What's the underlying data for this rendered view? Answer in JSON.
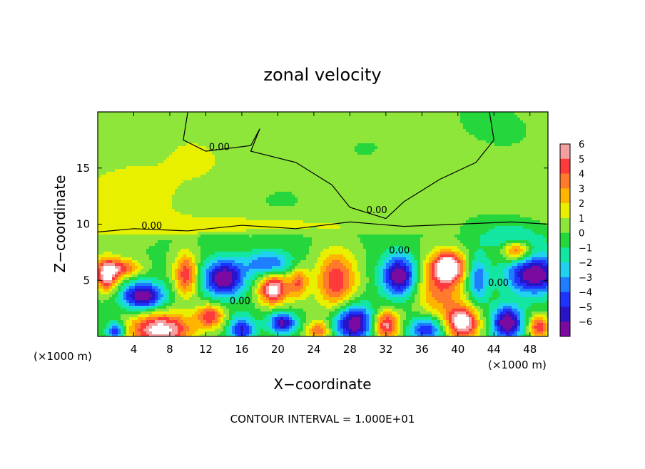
{
  "chart_data": {
    "type": "heatmap",
    "title": "zonal velocity",
    "xlabel": "X−coordinate",
    "ylabel": "Z−coordinate",
    "x_unit_left": "(×1000 m)",
    "x_unit_right": "(×1000 m)",
    "footer": "CONTOUR INTERVAL = 1.000E+01",
    "xlim": [
      0,
      50
    ],
    "ylim": [
      0,
      20
    ],
    "x_ticks": [
      4,
      8,
      12,
      16,
      20,
      24,
      28,
      32,
      36,
      40,
      44,
      48
    ],
    "y_ticks": [
      5,
      10,
      15
    ],
    "colorbar": {
      "ticks": [
        6,
        5,
        4,
        3,
        2,
        1,
        0,
        -1,
        -2,
        -3,
        -4,
        -5,
        -6
      ],
      "bands": [
        {
          "min": 5,
          "max": 6,
          "color": "#f4a0a0"
        },
        {
          "min": 4,
          "max": 5,
          "color": "#ff3a3a"
        },
        {
          "min": 3,
          "max": 4,
          "color": "#ff7a2a"
        },
        {
          "min": 2,
          "max": 3,
          "color": "#ffb400"
        },
        {
          "min": 1,
          "max": 2,
          "color": "#e8f000"
        },
        {
          "min": 0,
          "max": 1,
          "color": "#8ee63a"
        },
        {
          "min": -1,
          "max": 0,
          "color": "#25d63d"
        },
        {
          "min": -2,
          "max": -1,
          "color": "#12e6a0"
        },
        {
          "min": -3,
          "max": -2,
          "color": "#20d2f0"
        },
        {
          "min": -4,
          "max": -3,
          "color": "#1f7dff"
        },
        {
          "min": -5,
          "max": -4,
          "color": "#1f33ff"
        },
        {
          "min": -6,
          "max": -5,
          "color": "#2a14c8"
        },
        {
          "min": -7,
          "max": -6,
          "color": "#7a0aa0"
        }
      ]
    },
    "contour_labels": [
      {
        "x": 13.5,
        "z": 16.6,
        "text": "0.00"
      },
      {
        "x": 6.0,
        "z": 9.6,
        "text": "0.00"
      },
      {
        "x": 31.0,
        "z": 11.0,
        "text": "0.00"
      },
      {
        "x": 33.5,
        "z": 7.4,
        "text": "0.00"
      },
      {
        "x": 15.8,
        "z": 2.9,
        "text": "0.00"
      },
      {
        "x": 44.5,
        "z": 4.5,
        "text": "0.00"
      }
    ],
    "features": [
      {
        "x": 1.0,
        "z": 5.5,
        "rx": 1.3,
        "rz": 1.4,
        "v": 7
      },
      {
        "x": 3.0,
        "z": 6.1,
        "rx": 1.8,
        "rz": 0.8,
        "v": 4
      },
      {
        "x": 5.0,
        "z": 3.6,
        "rx": 2.3,
        "rz": 1.2,
        "v": -7
      },
      {
        "x": 9.8,
        "z": 5.5,
        "rx": 1.3,
        "rz": 1.9,
        "v": 5
      },
      {
        "x": 14.0,
        "z": 5.2,
        "rx": 2.3,
        "rz": 1.6,
        "v": -7
      },
      {
        "x": 19.5,
        "z": 4.2,
        "rx": 1.6,
        "rz": 1.3,
        "v": 7
      },
      {
        "x": 19.0,
        "z": 6.5,
        "rx": 2.6,
        "rz": 1.1,
        "v": -4
      },
      {
        "x": 22.3,
        "z": 4.8,
        "rx": 1.1,
        "rz": 1.4,
        "v": 4
      },
      {
        "x": 26.5,
        "z": 5.0,
        "rx": 2.2,
        "rz": 2.6,
        "v": 5
      },
      {
        "x": 33.5,
        "z": 5.4,
        "rx": 1.9,
        "rz": 1.8,
        "v": -7
      },
      {
        "x": 39.0,
        "z": 6.2,
        "rx": 1.6,
        "rz": 1.2,
        "v": 7
      },
      {
        "x": 38.0,
        "z": 4.5,
        "rx": 2.7,
        "rz": 2.8,
        "v": 4
      },
      {
        "x": 42.2,
        "z": 5.0,
        "rx": 1.2,
        "rz": 2.0,
        "v": -4
      },
      {
        "x": 48.5,
        "z": 5.5,
        "rx": 3.0,
        "rz": 1.7,
        "v": -7
      },
      {
        "x": 46.5,
        "z": 7.6,
        "rx": 1.4,
        "rz": 0.9,
        "v": 5
      },
      {
        "x": 2.0,
        "z": 0.5,
        "rx": 1.0,
        "rz": 0.8,
        "v": -5
      },
      {
        "x": 7.0,
        "z": 0.6,
        "rx": 3.4,
        "rz": 1.5,
        "v": 7
      },
      {
        "x": 12.5,
        "z": 1.8,
        "rx": 1.5,
        "rz": 1.0,
        "v": 5
      },
      {
        "x": 16.0,
        "z": 0.6,
        "rx": 1.4,
        "rz": 1.2,
        "v": -5
      },
      {
        "x": 20.5,
        "z": 1.2,
        "rx": 1.5,
        "rz": 0.9,
        "v": -6
      },
      {
        "x": 24.5,
        "z": 0.5,
        "rx": 1.3,
        "rz": 0.9,
        "v": 4
      },
      {
        "x": 28.5,
        "z": 1.2,
        "rx": 2.2,
        "rz": 1.6,
        "v": -7
      },
      {
        "x": 32.0,
        "z": 1.0,
        "rx": 1.5,
        "rz": 1.3,
        "v": 6
      },
      {
        "x": 36.5,
        "z": 0.6,
        "rx": 2.0,
        "rz": 1.1,
        "v": -5
      },
      {
        "x": 40.5,
        "z": 1.2,
        "rx": 1.8,
        "rz": 1.5,
        "v": 7
      },
      {
        "x": 45.5,
        "z": 1.2,
        "rx": 1.7,
        "rz": 1.5,
        "v": -7
      },
      {
        "x": 49.0,
        "z": 0.8,
        "rx": 1.2,
        "rz": 1.0,
        "v": 5
      },
      {
        "x": 2.0,
        "z": 12.0,
        "rx": 5.0,
        "rz": 3.5,
        "v": 1.3
      },
      {
        "x": 12.0,
        "z": 15.0,
        "rx": 6.0,
        "rz": 3.0,
        "v": 0.8
      },
      {
        "x": 30.0,
        "z": 16.5,
        "rx": 5.0,
        "rz": 2.5,
        "v": -0.8
      },
      {
        "x": 18.0,
        "z": 10.0,
        "rx": 10.0,
        "rz": 0.8,
        "v": 1.2
      },
      {
        "x": 46.0,
        "z": 8.9,
        "rx": 3.5,
        "rz": 1.2,
        "v": -2
      }
    ]
  }
}
